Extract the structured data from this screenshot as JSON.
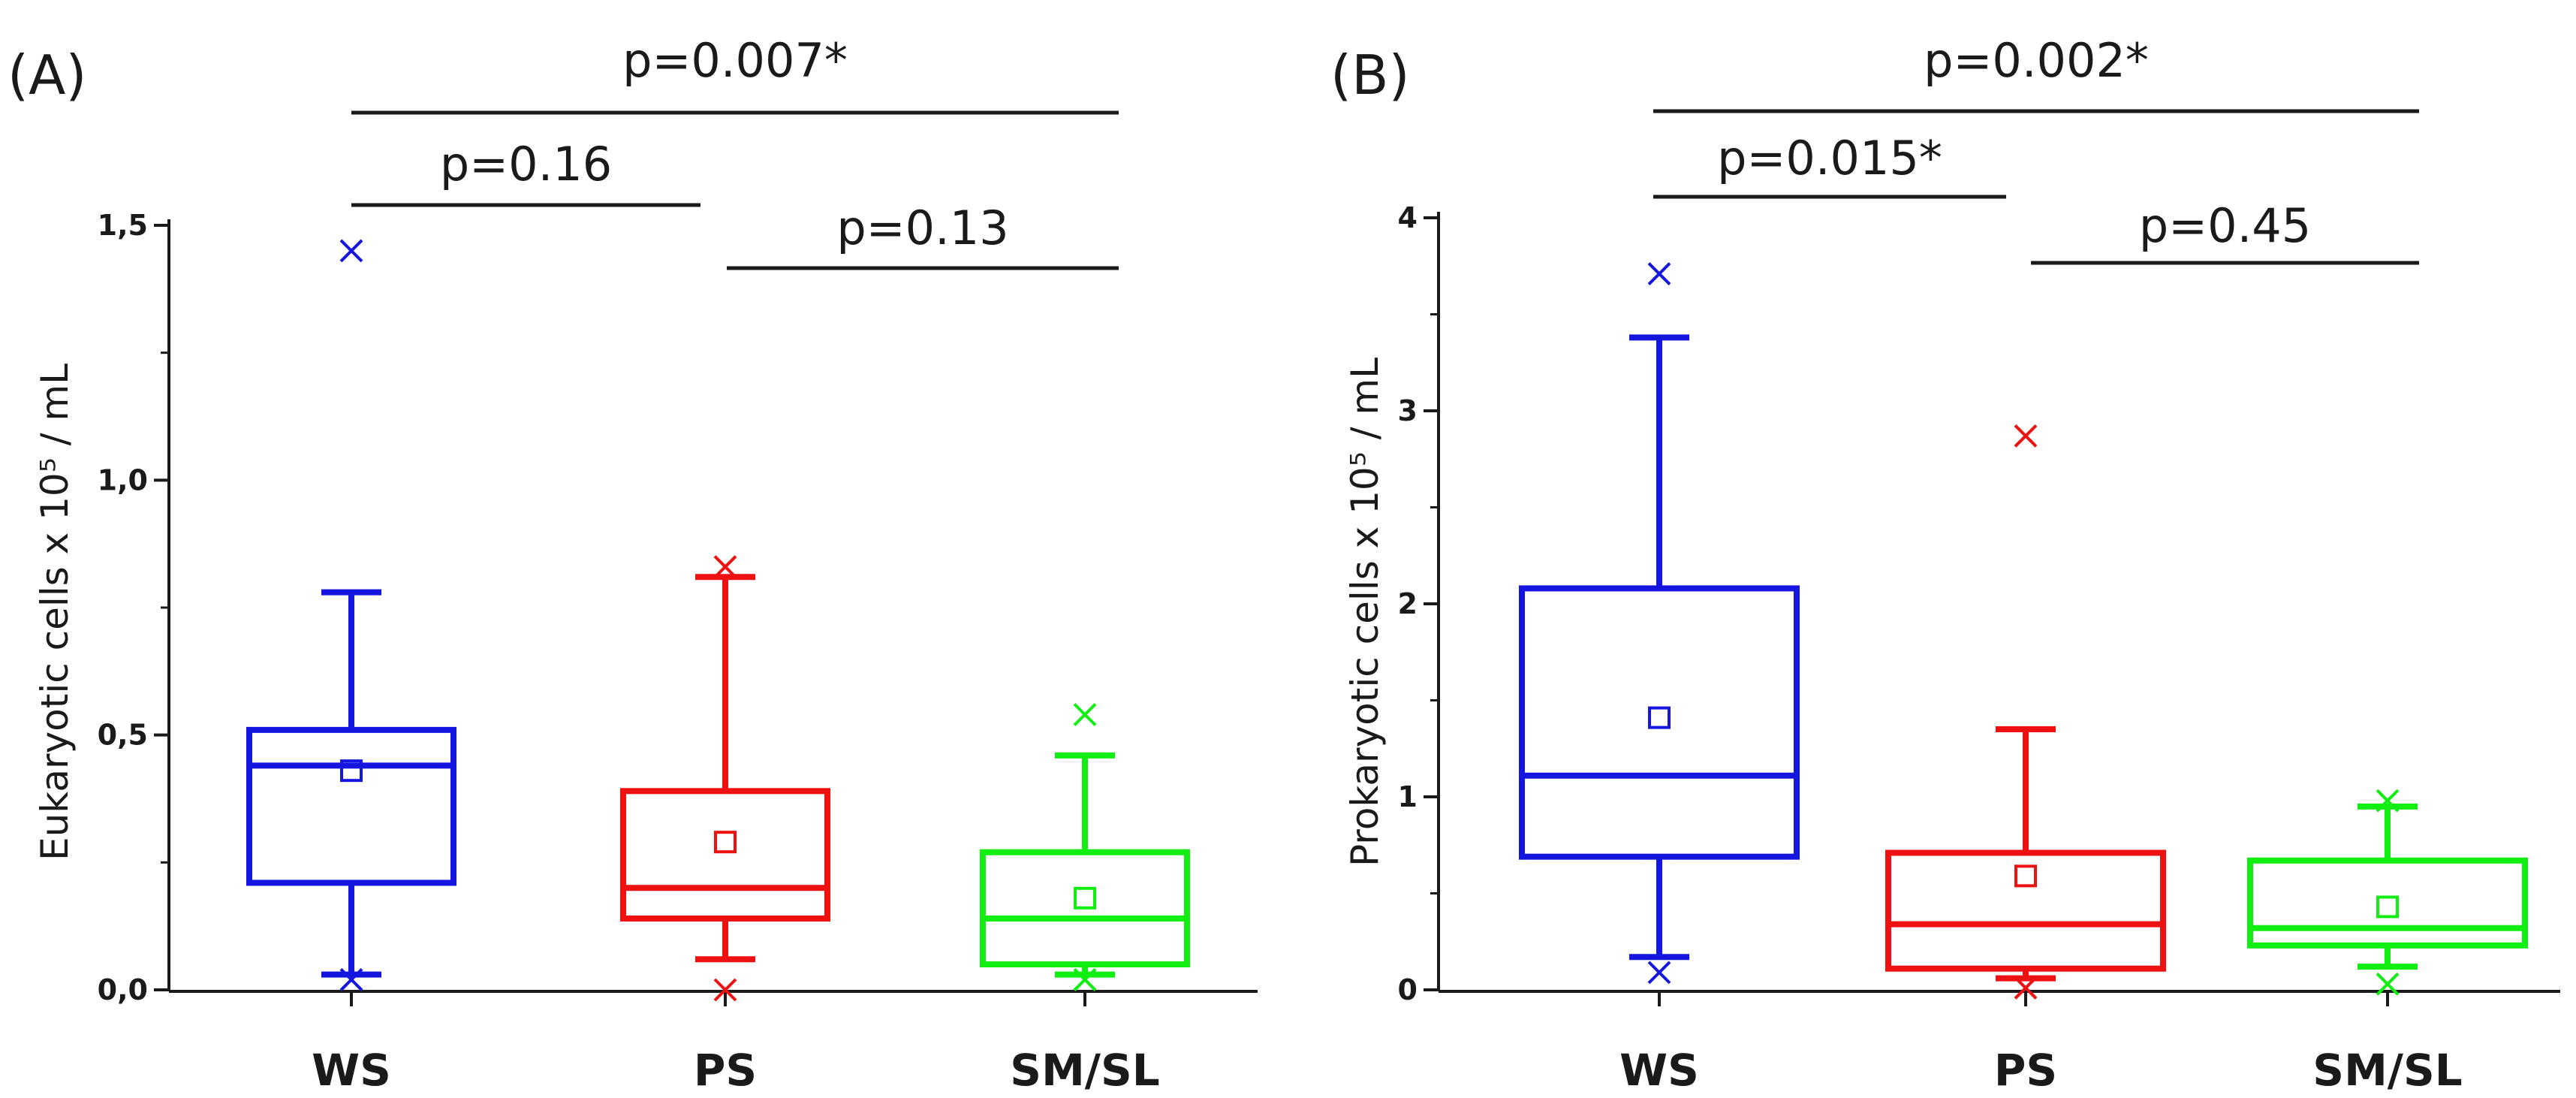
{
  "chart_data": [
    {
      "type": "box",
      "panel_label": "(A)",
      "ylabel": "Eukaryotic cells x 10⁵ / mL",
      "ylim": [
        0,
        1.5
      ],
      "yticks": [
        0,
        0.5,
        1.0,
        1.5
      ],
      "ytick_labels": [
        "0,0",
        "0,5",
        "1,0",
        "1,5"
      ],
      "categories": [
        "WS",
        "PS",
        "SM/SL"
      ],
      "colors": [
        "#1515e0",
        "#ee1111",
        "#11ee11"
      ],
      "boxes": [
        {
          "name": "WS",
          "q1": 0.21,
          "median": 0.44,
          "q3": 0.51,
          "mean": 0.43,
          "whisker_low": 0.03,
          "whisker_high": 0.78,
          "outliers": [
            0.02,
            1.45
          ]
        },
        {
          "name": "PS",
          "q1": 0.14,
          "median": 0.2,
          "q3": 0.39,
          "mean": 0.29,
          "whisker_low": 0.06,
          "whisker_high": 0.81,
          "outliers": [
            0.0,
            0.83
          ]
        },
        {
          "name": "SM/SL",
          "q1": 0.05,
          "median": 0.14,
          "q3": 0.27,
          "mean": 0.18,
          "whisker_low": 0.03,
          "whisker_high": 0.46,
          "outliers": [
            0.02,
            0.54
          ]
        }
      ],
      "comparisons": [
        {
          "from": "WS",
          "to": "SM/SL",
          "label": "p=0.007*"
        },
        {
          "from": "WS",
          "to": "PS",
          "label": "p=0.16"
        },
        {
          "from": "PS",
          "to": "SM/SL",
          "label": "p=0.13"
        }
      ]
    },
    {
      "type": "box",
      "panel_label": "(B)",
      "ylabel": "Prokaryotic cells x 10⁵ / mL",
      "ylim": [
        0,
        4
      ],
      "yticks": [
        0,
        1,
        2,
        3,
        4
      ],
      "ytick_labels": [
        "0",
        "1",
        "2",
        "3",
        "4"
      ],
      "categories": [
        "WS",
        "PS",
        "SM/SL"
      ],
      "colors": [
        "#1515e0",
        "#ee1111",
        "#11ee11"
      ],
      "boxes": [
        {
          "name": "WS",
          "q1": 0.69,
          "median": 1.11,
          "q3": 2.08,
          "mean": 1.41,
          "whisker_low": 0.17,
          "whisker_high": 3.38,
          "outliers": [
            0.09,
            3.71
          ]
        },
        {
          "name": "PS",
          "q1": 0.11,
          "median": 0.34,
          "q3": 0.71,
          "mean": 0.59,
          "whisker_low": 0.06,
          "whisker_high": 1.35,
          "outliers": [
            0.01,
            2.87
          ]
        },
        {
          "name": "SM/SL",
          "q1": 0.23,
          "median": 0.32,
          "q3": 0.67,
          "mean": 0.43,
          "whisker_low": 0.12,
          "whisker_high": 0.95,
          "outliers": [
            0.03,
            0.98
          ]
        }
      ],
      "comparisons": [
        {
          "from": "WS",
          "to": "SM/SL",
          "label": "p=0.002*"
        },
        {
          "from": "WS",
          "to": "PS",
          "label": "p=0.015*"
        },
        {
          "from": "PS",
          "to": "SM/SL",
          "label": "p=0.45"
        }
      ]
    }
  ]
}
